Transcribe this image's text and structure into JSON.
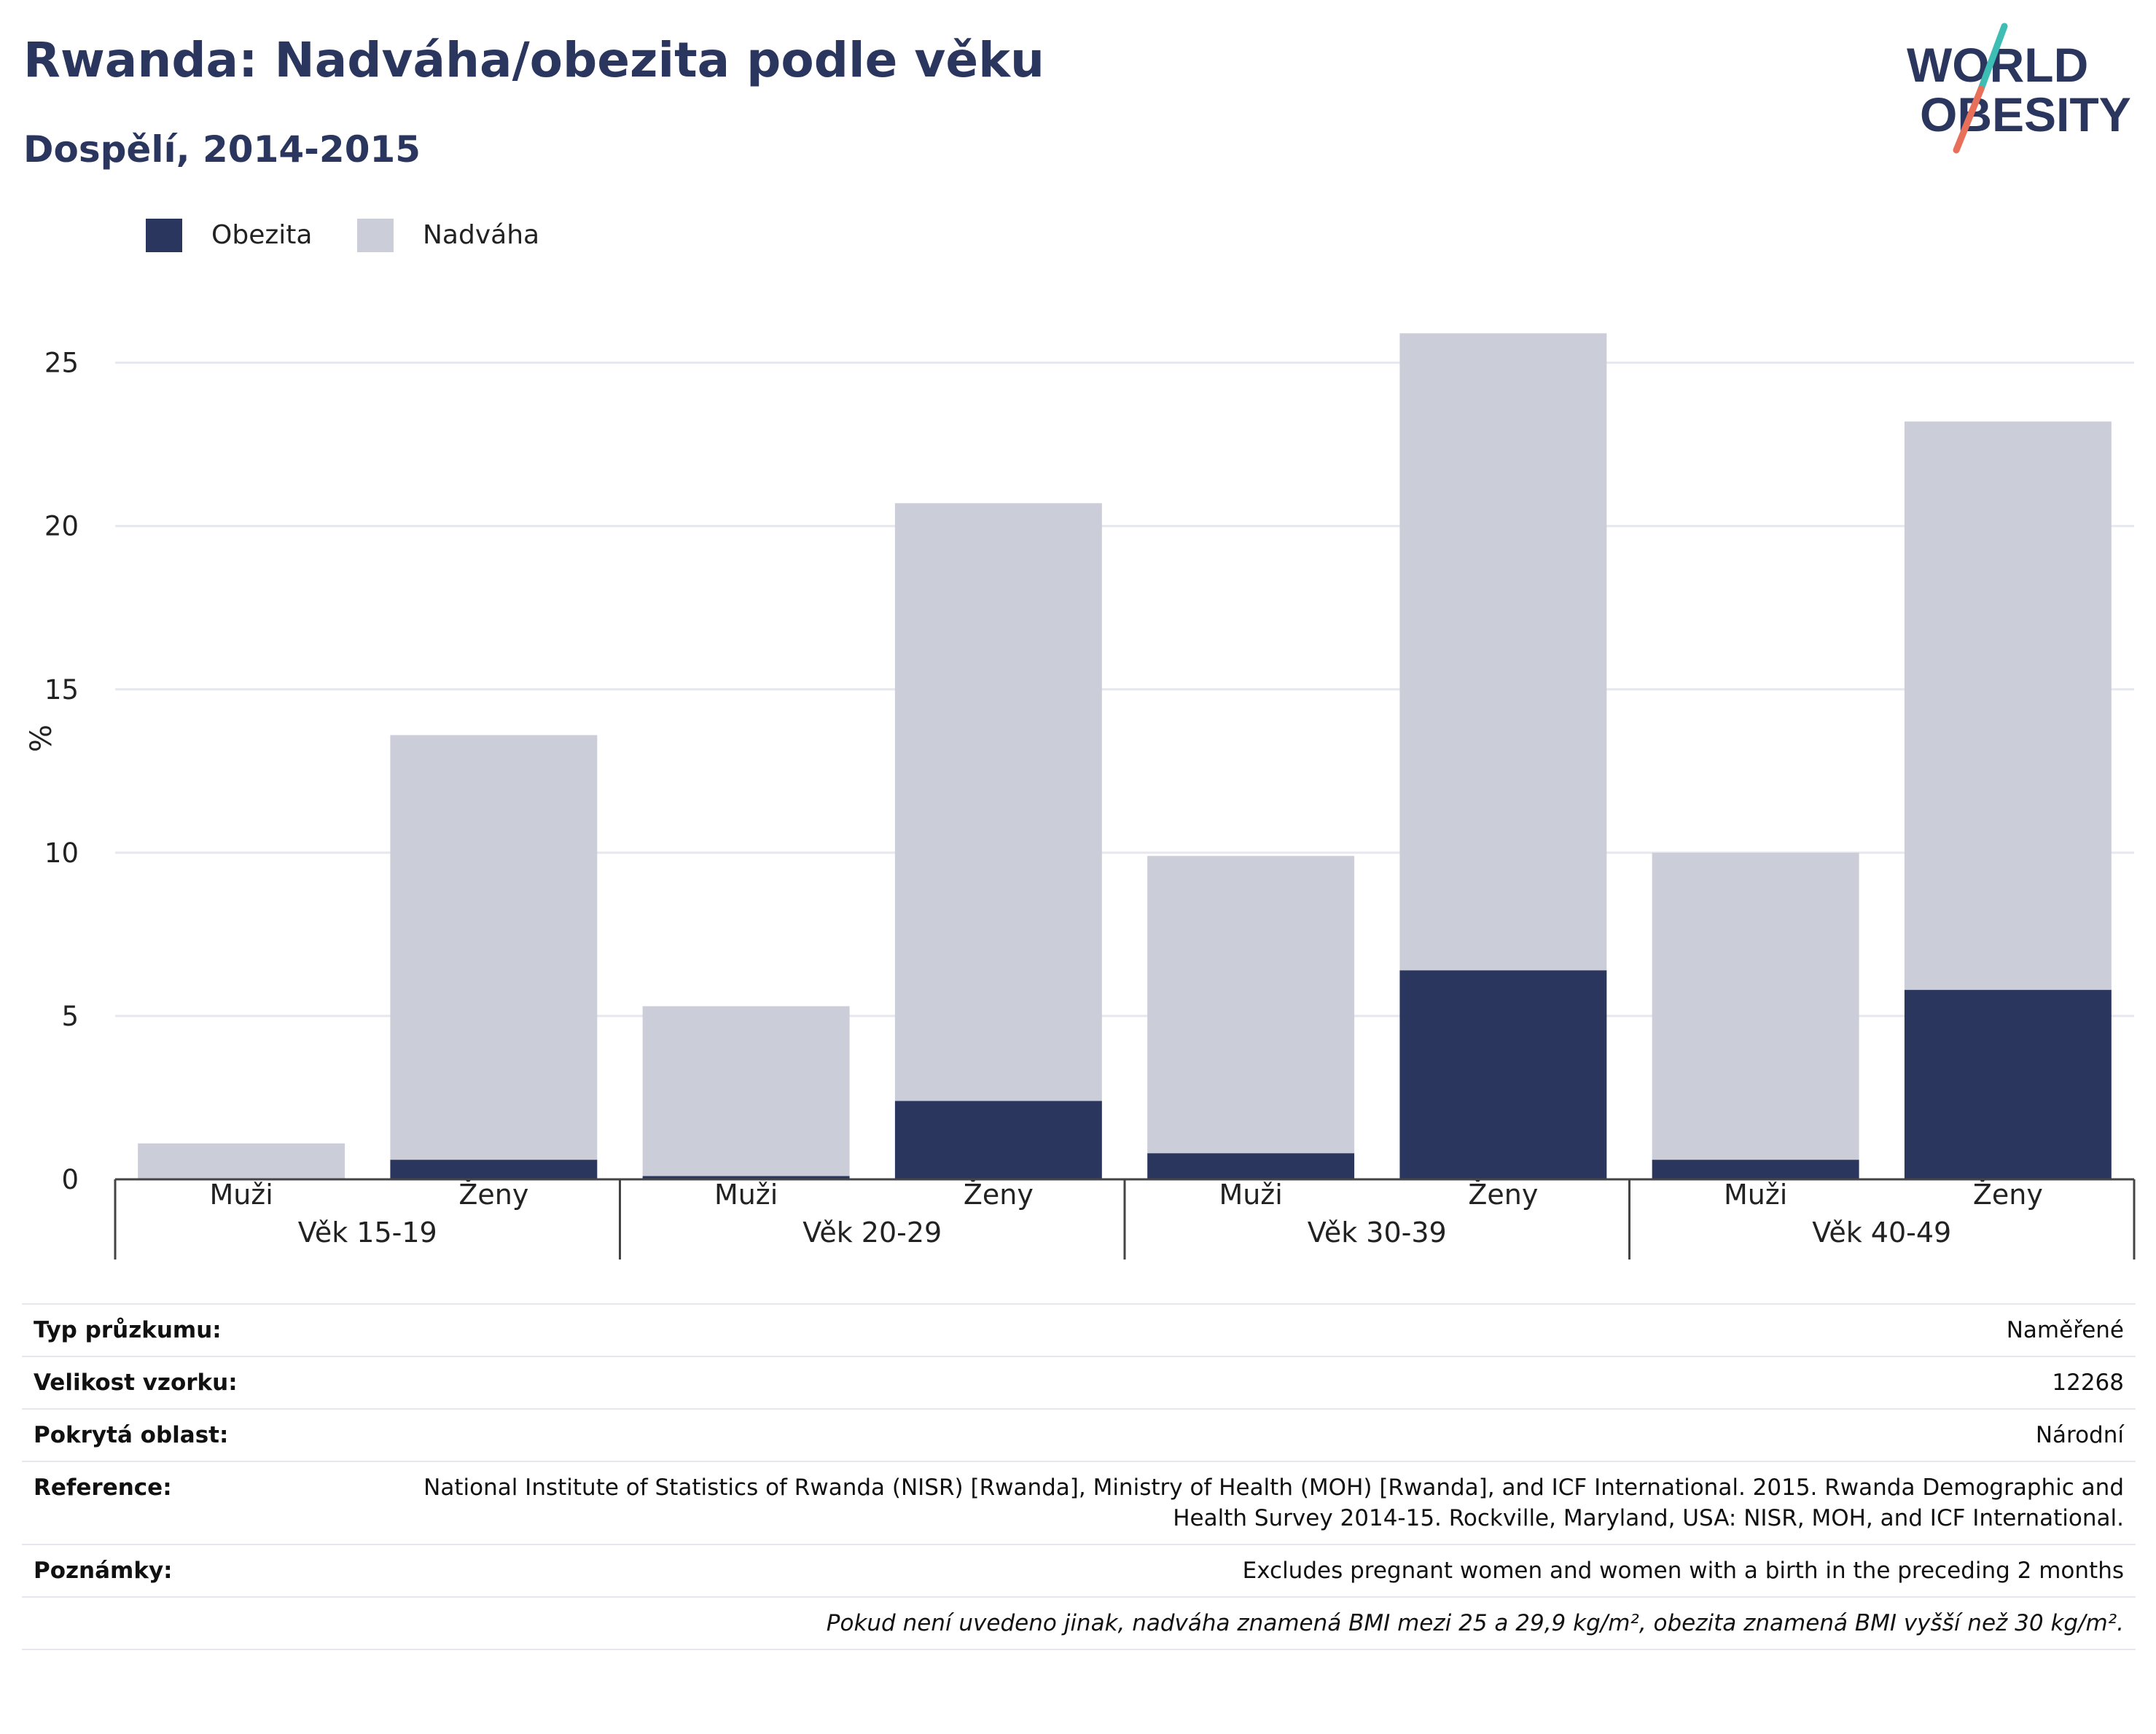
{
  "header": {
    "title": "Rwanda: Nadváha/obezita podle věku",
    "subtitle": "Dospělí, 2014-2015"
  },
  "logo": {
    "line1": "WORLD",
    "line2": "OBESITY",
    "colors": {
      "text": "#2b365f",
      "slash_top": "#3dbdb4",
      "slash_bottom": "#e8705a"
    }
  },
  "legend": [
    {
      "label": "Obezita",
      "color": "#2b365f"
    },
    {
      "label": "Nadváha",
      "color": "#cbcdd9"
    }
  ],
  "chart_data": {
    "type": "bar",
    "stacked": true,
    "ylabel": "%",
    "ylim": [
      0,
      27
    ],
    "yticks": [
      0,
      5,
      10,
      15,
      20,
      25
    ],
    "grid": true,
    "legend_position": "top-left",
    "groups": [
      "Věk 15-19",
      "Věk 20-29",
      "Věk 30-39",
      "Věk 40-49"
    ],
    "categories": [
      "Muži",
      "Ženy",
      "Muži",
      "Ženy",
      "Muži",
      "Ženy",
      "Muži",
      "Ženy"
    ],
    "series": [
      {
        "name": "Obezita",
        "color": "#2b365f",
        "values": [
          0.0,
          0.6,
          0.1,
          2.4,
          0.8,
          6.4,
          0.6,
          5.8
        ]
      },
      {
        "name": "Nadváha",
        "color": "#cbcdd9",
        "values": [
          1.1,
          13.0,
          5.2,
          18.3,
          9.1,
          19.5,
          9.4,
          17.4
        ]
      }
    ]
  },
  "info": [
    {
      "key": "Typ průzkumu:",
      "value": "Naměřené"
    },
    {
      "key": "Velikost vzorku:",
      "value": "12268"
    },
    {
      "key": "Pokrytá oblast:",
      "value": "Národní"
    },
    {
      "key": "Reference:",
      "value": "National Institute of Statistics of Rwanda (NISR) [Rwanda], Ministry of Health (MOH) [Rwanda], and ICF International. 2015. Rwanda Demographic and Health Survey 2014-15. Rockville, Maryland, USA: NISR, MOH, and ICF International."
    },
    {
      "key": "Poznámky:",
      "value": "Excludes pregnant women and women with a birth in the preceding 2 months"
    }
  ],
  "footnote": "Pokud není uvedeno jinak, nadváha znamená BMI mezi 25 a 29,9 kg/m², obezita znamená BMI vyšší než 30 kg/m²."
}
